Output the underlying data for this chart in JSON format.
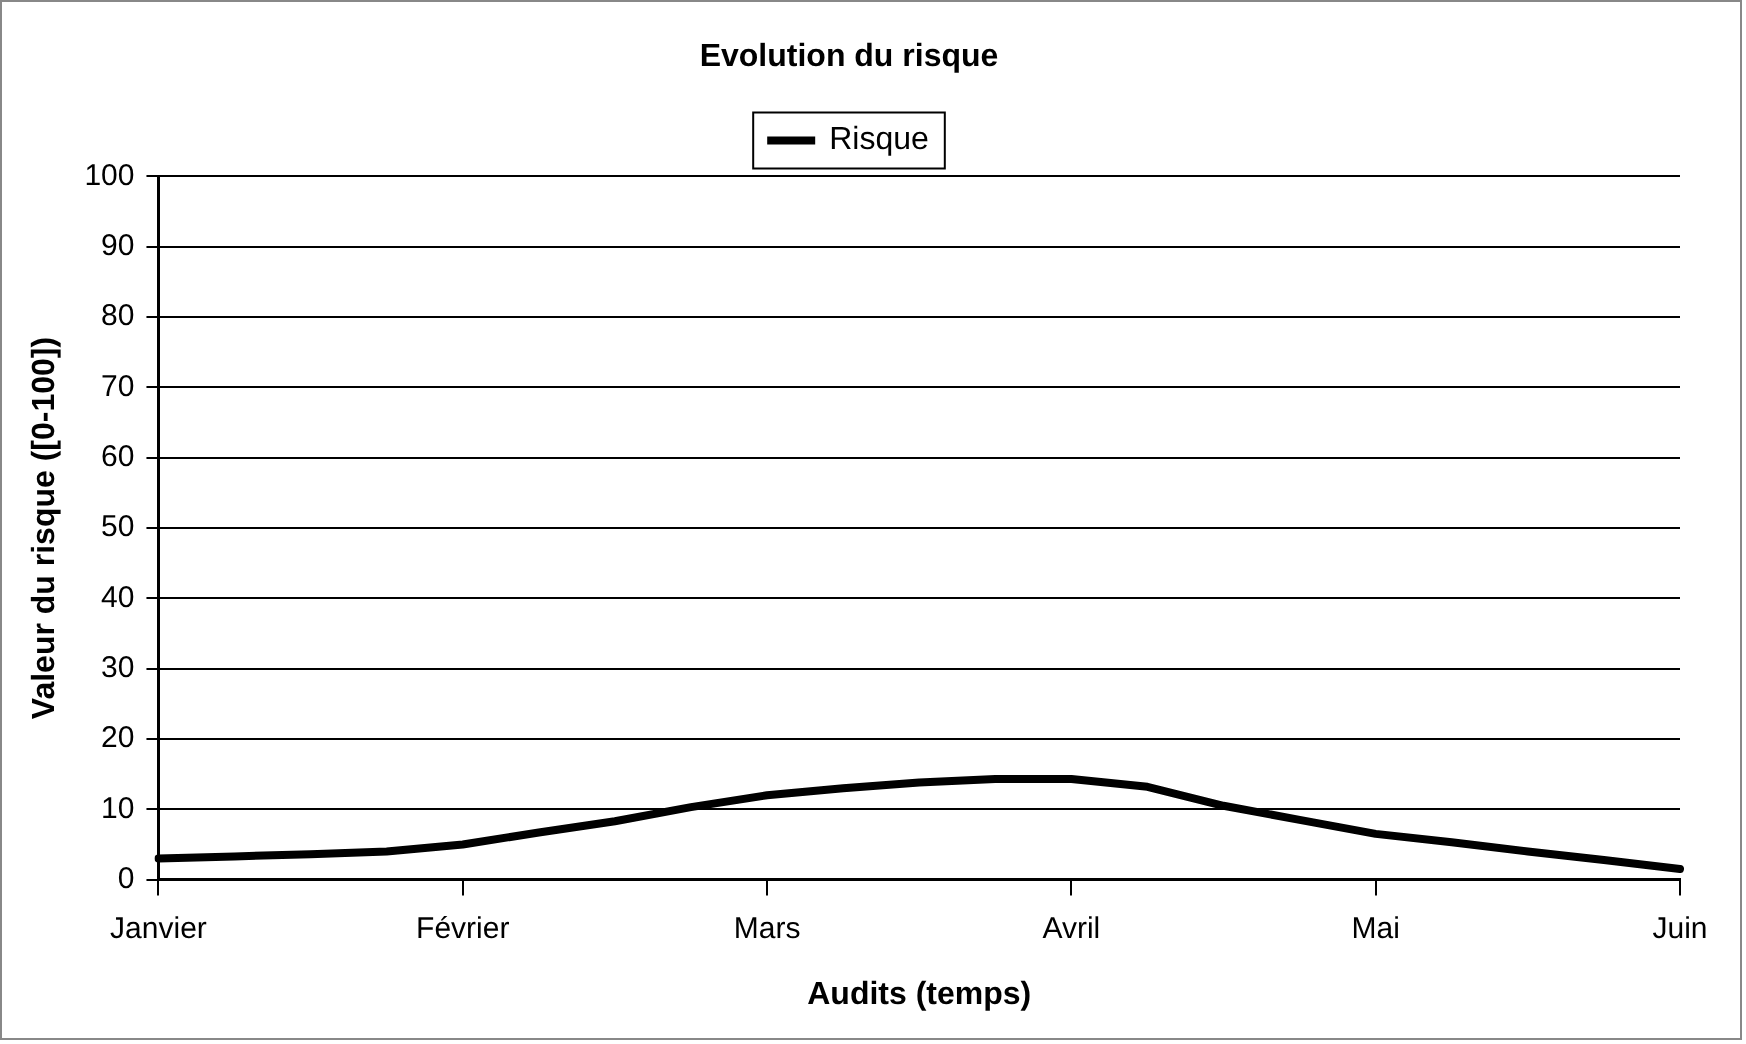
{
  "chart_data": {
    "type": "line",
    "title": "Evolution du risque",
    "xlabel": "Audits (temps)",
    "ylabel": "Valeur du risque ([0-100])",
    "categories": [
      "Janvier",
      null,
      null,
      null,
      "Février",
      null,
      null,
      null,
      "Mars",
      null,
      null,
      null,
      "Avril",
      null,
      null,
      null,
      "Mai",
      null,
      null,
      null,
      "Juin"
    ],
    "series": [
      {
        "name": "Risque",
        "color": "#000000",
        "values": [
          3,
          3.3,
          3.6,
          4,
          5,
          6.7,
          8.3,
          10.3,
          12,
          13,
          13.8,
          14.3,
          14.3,
          13.2,
          10.5,
          8.5,
          6.5,
          5.3,
          4,
          2.8,
          1.5
        ]
      }
    ],
    "ylim": [
      0,
      100
    ],
    "yticks": [
      0,
      10,
      20,
      30,
      40,
      50,
      60,
      70,
      80,
      90,
      100
    ],
    "grid": "y",
    "legend": "top",
    "marker": "none",
    "line_style": "solid"
  }
}
